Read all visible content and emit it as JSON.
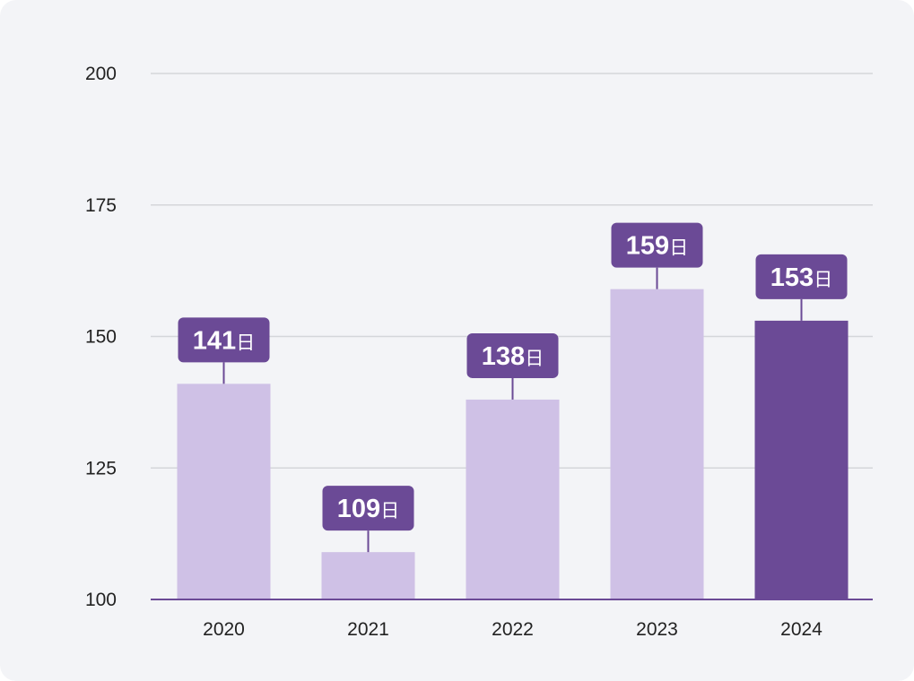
{
  "chart_data": {
    "type": "bar",
    "title": "",
    "xlabel": "",
    "ylabel": "",
    "categories": [
      "2020",
      "2021",
      "2022",
      "2023",
      "2024"
    ],
    "values": [
      141,
      109,
      138,
      159,
      153
    ],
    "value_suffix": "日",
    "ylim": [
      100,
      200
    ],
    "yticks": [
      "100",
      "125",
      "150",
      "175",
      "200"
    ],
    "grid": true,
    "legend": "none",
    "highlight_index": 4,
    "colors": {
      "bar": "#cfc1e6",
      "bar_highlight": "#6b4a96",
      "label_bg": "#6b4a96",
      "label_text": "#ffffff",
      "grid": "#d4d6da",
      "axis": "#6b4a96"
    }
  }
}
